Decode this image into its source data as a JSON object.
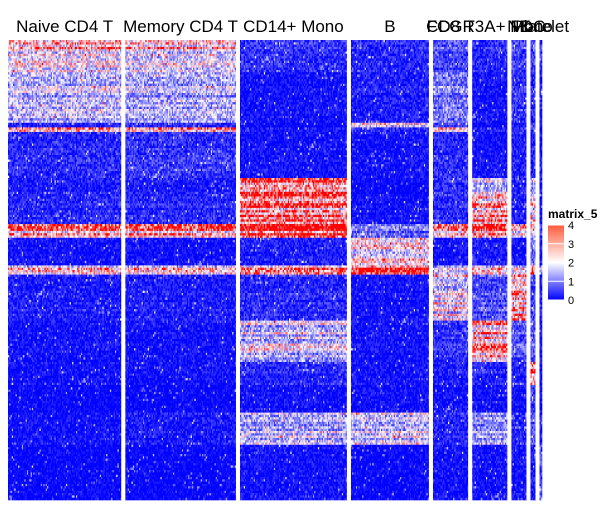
{
  "chart_data": {
    "type": "heatmap",
    "title": "",
    "xlabel": "",
    "ylabel": "",
    "clusters": [
      {
        "name": "Naive CD4 T",
        "cells": 90
      },
      {
        "name": "Memory CD4 T",
        "cells": 88
      },
      {
        "name": "CD14+ Mono",
        "cells": 85
      },
      {
        "name": "B",
        "cells": 62
      },
      {
        "name": "CD8 T",
        "cells": 28
      },
      {
        "name": "FCGR3A+ Mono",
        "cells": 28
      },
      {
        "name": "NK",
        "cells": 12
      },
      {
        "name": "DC",
        "cells": 4
      },
      {
        "name": "Platelet",
        "cells": 2
      }
    ],
    "legend": {
      "title": "matrix_5",
      "ticks": [
        0,
        1,
        2,
        3,
        4
      ],
      "range": [
        0,
        4
      ],
      "placement": "right",
      "colors": {
        "low": "#0000ff",
        "mid": "#ffffff",
        "high": "#ff0000"
      }
    },
    "gene_blocks": [
      {
        "genes": 14,
        "profile": [
          2.2,
          2.0,
          0.4,
          0.3,
          0.6,
          0.3,
          0.5,
          0.5,
          0.4
        ]
      },
      {
        "genes": 22,
        "profile": [
          1.4,
          1.3,
          0.1,
          0.2,
          0.9,
          0.1,
          0.4,
          0.3,
          0.2
        ]
      },
      {
        "genes": 2,
        "profile": [
          0.3,
          0.4,
          0.0,
          2.4,
          0.5,
          0.0,
          0.1,
          1.0,
          0.0
        ]
      },
      {
        "genes": 2,
        "profile": [
          3.0,
          3.1,
          0.2,
          0.4,
          2.6,
          0.3,
          0.5,
          0.5,
          0.2
        ]
      },
      {
        "genes": 20,
        "profile": [
          0.3,
          0.4,
          0.1,
          0.1,
          0.3,
          0.1,
          0.2,
          0.2,
          0.1
        ]
      },
      {
        "genes": 8,
        "profile": [
          0.2,
          0.2,
          3.6,
          0.0,
          0.4,
          1.8,
          0.3,
          1.4,
          0.2
        ]
      },
      {
        "genes": 12,
        "profile": [
          0.3,
          0.3,
          3.0,
          0.1,
          0.3,
          2.6,
          0.2,
          1.8,
          0.1
        ]
      },
      {
        "genes": 6,
        "profile": [
          2.8,
          2.8,
          3.9,
          0.8,
          2.6,
          3.2,
          2.0,
          2.0,
          0.5
        ]
      },
      {
        "genes": 12,
        "profile": [
          0.1,
          0.1,
          0.2,
          2.2,
          0.1,
          0.2,
          0.1,
          0.8,
          0.1
        ]
      },
      {
        "genes": 4,
        "profile": [
          2.0,
          1.9,
          2.6,
          3.4,
          1.4,
          2.0,
          1.6,
          3.0,
          1.2
        ]
      },
      {
        "genes": 20,
        "profile": [
          0.2,
          0.2,
          0.3,
          0.1,
          1.8,
          0.6,
          2.6,
          0.5,
          0.2
        ]
      },
      {
        "genes": 18,
        "profile": [
          0.1,
          0.1,
          1.6,
          0.1,
          0.4,
          2.8,
          0.6,
          0.8,
          0.1
        ]
      },
      {
        "genes": 10,
        "profile": [
          0.1,
          0.1,
          0.3,
          0.1,
          0.2,
          0.3,
          0.3,
          3.2,
          0.1
        ]
      },
      {
        "genes": 12,
        "profile": [
          0.0,
          0.0,
          0.1,
          0.1,
          0.1,
          0.1,
          0.1,
          0.4,
          0.1
        ]
      },
      {
        "genes": 14,
        "profile": [
          0.1,
          0.2,
          1.6,
          1.8,
          0.3,
          1.4,
          0.3,
          0.8,
          0.3
        ]
      },
      {
        "genes": 24,
        "profile": [
          0.0,
          0.0,
          0.1,
          0.0,
          0.1,
          0.1,
          0.1,
          0.2,
          0.6
        ]
      }
    ]
  }
}
